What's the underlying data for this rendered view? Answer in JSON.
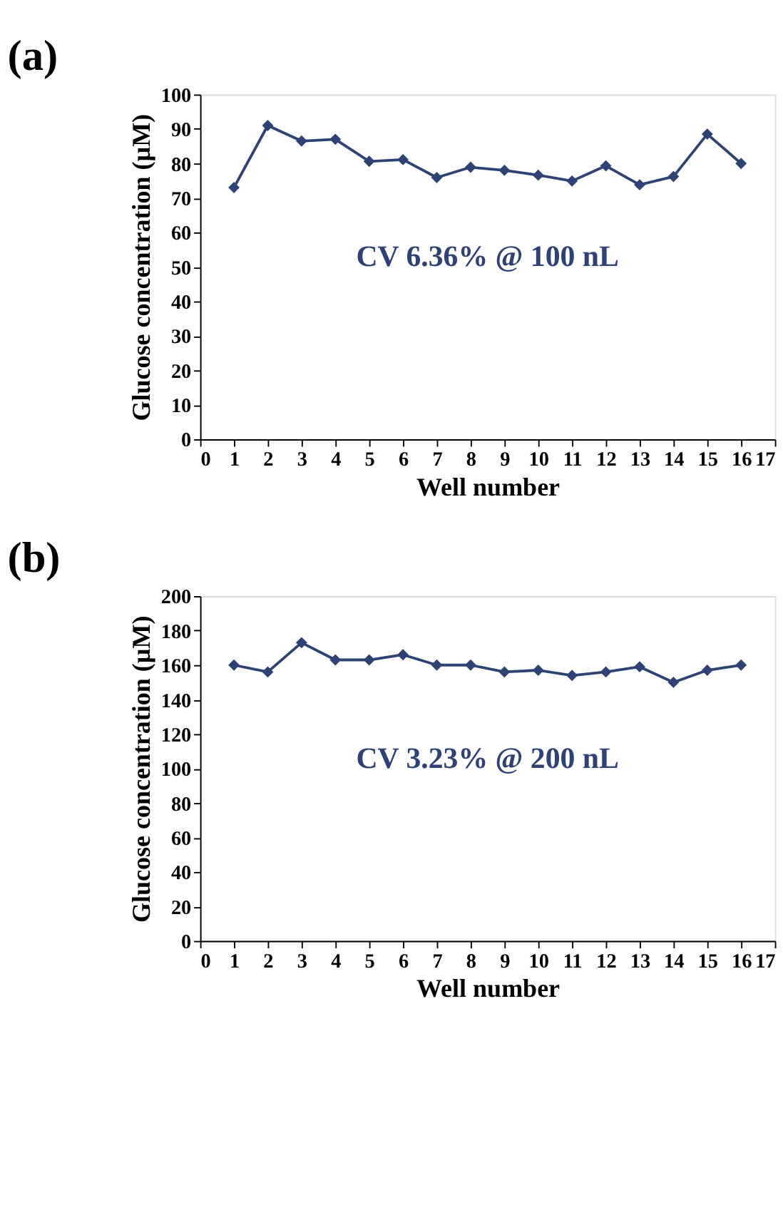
{
  "chart_data": [
    {
      "type": "line",
      "title": "(a)",
      "xlabel": "Well number",
      "ylabel": "Glucose concentration (µM)",
      "x": [
        1,
        2,
        3,
        4,
        5,
        6,
        7,
        8,
        9,
        10,
        11,
        12,
        13,
        14,
        15,
        16
      ],
      "series": [
        {
          "color": "#2e4374",
          "values": [
            73,
            91,
            86.5,
            87,
            80.6,
            81.1,
            75.9,
            78.9,
            78,
            76.6,
            74.9,
            79.3,
            73.8,
            76.2,
            88.5,
            80
          ]
        }
      ],
      "xlim": [
        0,
        17
      ],
      "xticks": [
        0,
        1,
        2,
        3,
        4,
        5,
        6,
        7,
        8,
        9,
        10,
        11,
        12,
        13,
        14,
        15,
        16,
        17
      ],
      "ylim": [
        0,
        100
      ],
      "yticks": [
        0,
        10,
        20,
        30,
        40,
        50,
        60,
        70,
        80,
        90,
        100
      ],
      "marker": "diamond",
      "line_style": "solid",
      "grid": false,
      "annotations": [
        "CV 6.36% @ 100 nL"
      ]
    },
    {
      "type": "line",
      "title": "(b)",
      "xlabel": "Well number",
      "ylabel": "Glucose concentration (µM)",
      "x": [
        1,
        2,
        3,
        4,
        5,
        6,
        7,
        8,
        9,
        10,
        11,
        12,
        13,
        14,
        15,
        16
      ],
      "series": [
        {
          "color": "#2e4374",
          "values": [
            160,
            156,
            173,
            163,
            163,
            166,
            160,
            160,
            156,
            157,
            154,
            156,
            159,
            150,
            157,
            160
          ]
        }
      ],
      "xlim": [
        0,
        17
      ],
      "xticks": [
        0,
        1,
        2,
        3,
        4,
        5,
        6,
        7,
        8,
        9,
        10,
        11,
        12,
        13,
        14,
        15,
        16,
        17
      ],
      "ylim": [
        0,
        200
      ],
      "yticks": [
        0,
        20,
        40,
        60,
        80,
        100,
        120,
        140,
        160,
        180,
        200
      ],
      "marker": "diamond",
      "line_style": "solid",
      "grid": false,
      "annotations": [
        "CV 3.23% @ 200 nL"
      ]
    }
  ]
}
